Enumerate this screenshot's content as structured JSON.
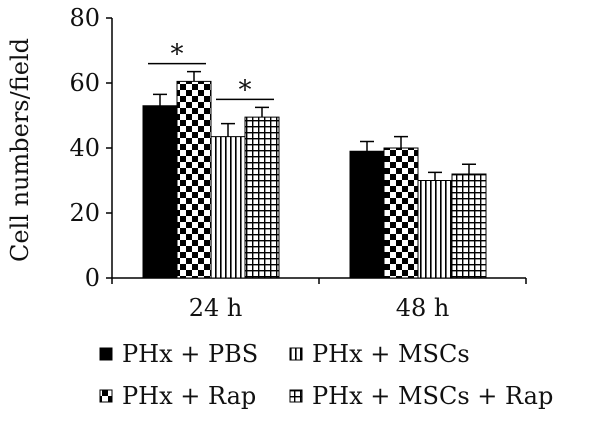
{
  "chart_data": {
    "type": "bar",
    "ylabel": "Cell numbers/field",
    "xlabel": "",
    "ylim": [
      0,
      80
    ],
    "yticks": [
      0,
      20,
      40,
      60,
      80
    ],
    "categories": [
      "24 h",
      "48 h"
    ],
    "series": [
      {
        "name": "PHx + PBS",
        "pattern": "solid",
        "values": [
          53,
          39
        ],
        "errors": [
          3.5,
          3
        ]
      },
      {
        "name": "PHx + Rap",
        "pattern": "checker",
        "values": [
          60.5,
          40
        ],
        "errors": [
          3,
          3.5
        ]
      },
      {
        "name": "PHx + MSCs",
        "pattern": "vertical-stripes",
        "values": [
          43.5,
          30
        ],
        "errors": [
          4,
          2.5
        ]
      },
      {
        "name": "PHx + MSCs + Rap",
        "pattern": "grid",
        "values": [
          49.5,
          32
        ],
        "errors": [
          3,
          3
        ]
      }
    ],
    "significance": [
      {
        "category": "24 h",
        "from_series": 0,
        "to_series": 1,
        "label": "*"
      },
      {
        "category": "24 h",
        "from_series": 2,
        "to_series": 3,
        "label": "*"
      }
    ],
    "legend": {
      "placement": "bottom",
      "columns": 2
    },
    "grid": false,
    "colors": {
      "ink": "#000000",
      "background": "#ffffff"
    }
  }
}
